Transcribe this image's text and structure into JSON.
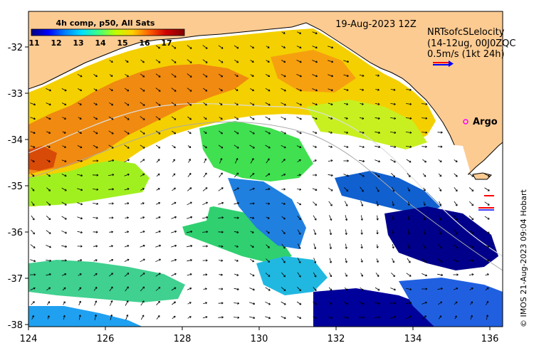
{
  "map": {
    "date_label": "19-Aug-2023 12Z",
    "colorbar": {
      "title": "4h comp, p50, All Sats",
      "ticks": [
        "11",
        "12",
        "13",
        "14",
        "15",
        "16",
        "17"
      ],
      "colors": [
        "#00007f",
        "#0000ff",
        "#0080ff",
        "#00e0ff",
        "#40ff80",
        "#c0ff00",
        "#ffd000",
        "#ff6000",
        "#d00000",
        "#7f0000"
      ]
    },
    "velocity_legend": {
      "lines": [
        "NRTsofcSLelocity",
        "(14-12ug, 00J0ZQC",
        "0.5m/s (1kt 24h)"
      ],
      "arrow_colors": [
        "#ff0000",
        "#0000ff"
      ]
    },
    "argo_label": "Argo",
    "credit": "© IMOS 21-Aug-2023 09:04 Hobart",
    "x_ticks": [
      "124",
      "126",
      "128",
      "130",
      "132",
      "134",
      "136"
    ],
    "y_ticks": [
      "-32",
      "-33",
      "-34",
      "-35",
      "-36",
      "-37",
      "-38"
    ],
    "colors": {
      "land": "#fccb92",
      "coast": "#000000",
      "argo_marker": "#ff00ff"
    }
  }
}
